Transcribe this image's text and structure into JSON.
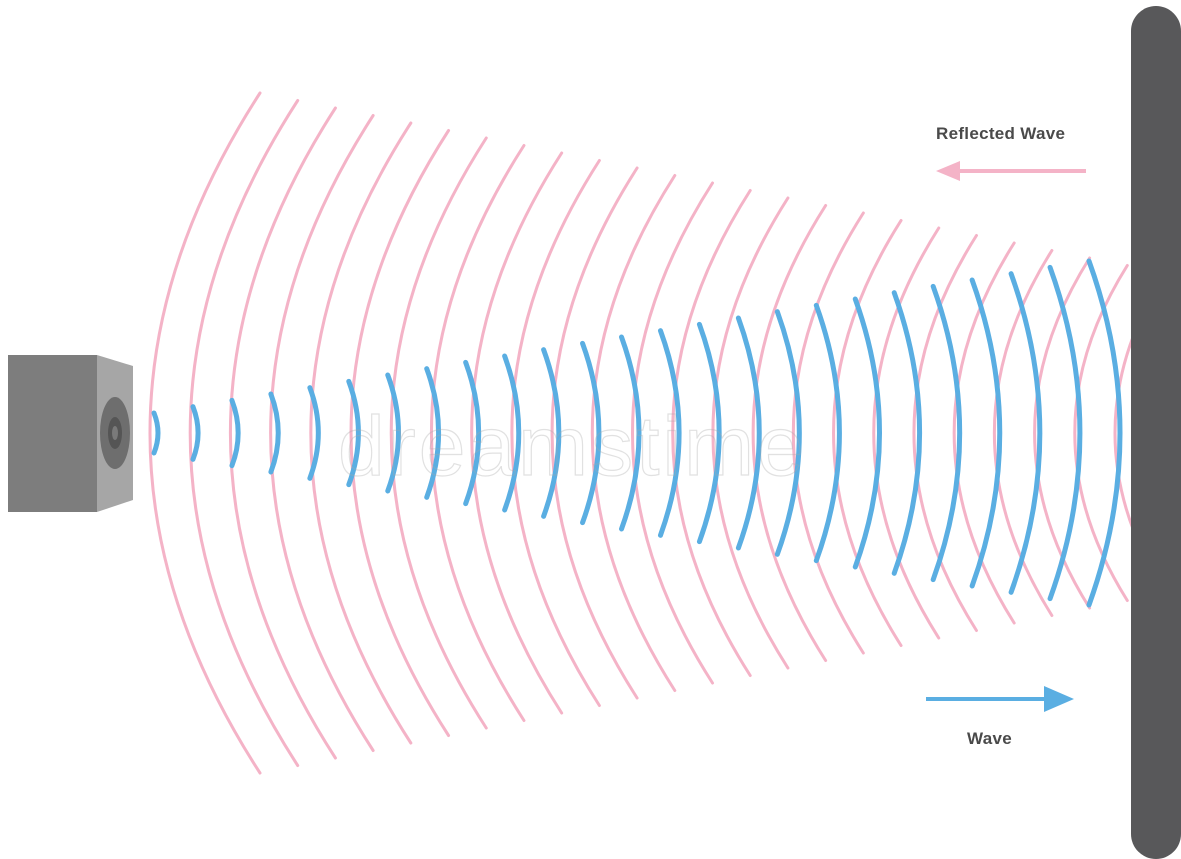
{
  "labels": {
    "reflected_wave": "Reflected Wave",
    "wave": "Wave"
  },
  "watermark": "dreamstime",
  "colors": {
    "incident_wave": "#5aaee2",
    "reflected_wave": "#f4b3c7",
    "wall": "#58585a",
    "speaker_front": "#7d7d7d",
    "speaker_side": "#a8a8a8",
    "label_text": "#4a4a4a"
  },
  "icons": {
    "speaker": "speaker-icon",
    "wall": "reflecting-wall",
    "reflected_arrow": "arrow-left-icon",
    "wave_arrow": "arrow-right-icon"
  }
}
